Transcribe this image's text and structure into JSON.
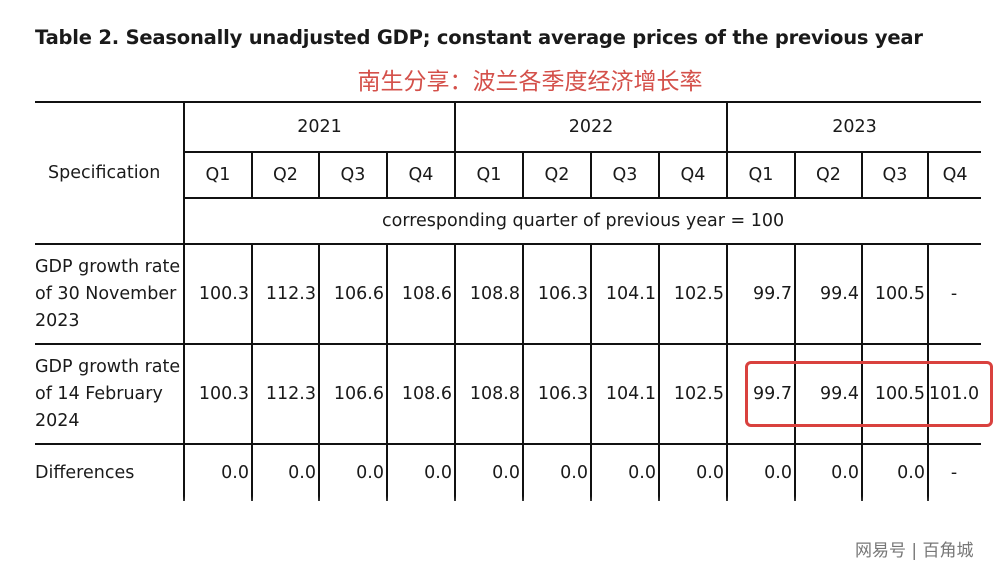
{
  "title": "Table 2. Seasonally unadjusted GDP; constant average prices of the previous year",
  "subtitle": "南生分享：波兰各季度经济增长率",
  "table": {
    "spec_header": "Specification",
    "years": [
      "2021",
      "2022",
      "2023"
    ],
    "quarters": [
      "Q1",
      "Q2",
      "Q3",
      "Q4",
      "Q1",
      "Q2",
      "Q3",
      "Q4",
      "Q1",
      "Q2",
      "Q3",
      "Q4"
    ],
    "note": "corresponding quarter of previous year = 100",
    "rows": [
      {
        "label": "GDP growth rate of 30 November 2023",
        "values": [
          "100.3",
          "112.3",
          "106.6",
          "108.6",
          "108.8",
          "106.3",
          "104.1",
          "102.5",
          "99.7",
          "99.4",
          "100.5",
          "-"
        ]
      },
      {
        "label": "GDP growth rate of 14 February 2024",
        "values": [
          "100.3",
          "112.3",
          "106.6",
          "108.6",
          "108.8",
          "106.3",
          "104.1",
          "102.5",
          "99.7",
          "99.4",
          "100.5",
          "101.0"
        ]
      },
      {
        "label": "Differences",
        "values": [
          "0.0",
          "0.0",
          "0.0",
          "0.0",
          "0.0",
          "0.0",
          "0.0",
          "0.0",
          "0.0",
          "0.0",
          "0.0",
          "-"
        ]
      }
    ]
  },
  "highlight_color": "#d9413e",
  "watermark": "网易号 | 百角城"
}
